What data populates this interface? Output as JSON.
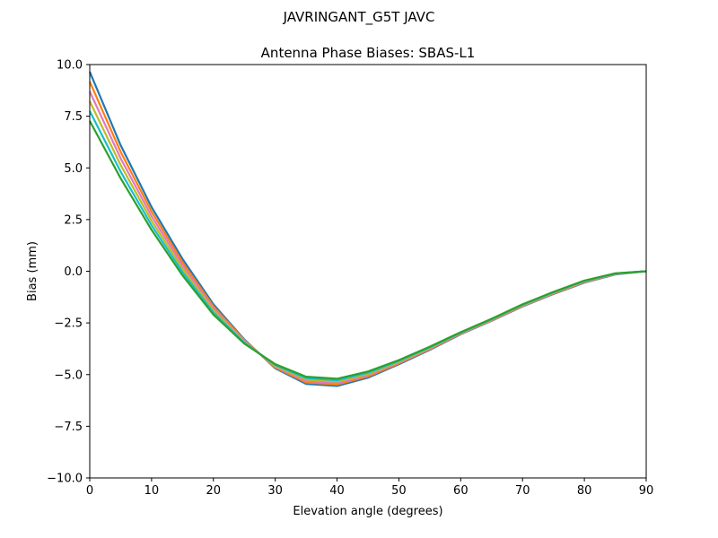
{
  "suptitle": "JAVRINGANT_G5T  JAVC",
  "chart_data": {
    "type": "line",
    "title": "Antenna Phase Biases: SBAS-L1",
    "xlabel": "Elevation angle (degrees)",
    "ylabel": "Bias (mm)",
    "xlim": [
      0,
      90
    ],
    "ylim": [
      -10,
      10
    ],
    "xticks": [
      "0",
      "10",
      "20",
      "30",
      "40",
      "50",
      "60",
      "70",
      "80",
      "90"
    ],
    "yticks": [
      "−10.0",
      "−7.5",
      "−5.0",
      "−2.5",
      "0.0",
      "2.5",
      "5.0",
      "7.5",
      "10.0"
    ],
    "grid": false,
    "x": [
      0,
      5,
      10,
      15,
      20,
      25,
      30,
      35,
      40,
      45,
      50,
      55,
      60,
      65,
      70,
      75,
      80,
      85,
      90
    ],
    "series": [
      {
        "color": "#1f77b4",
        "values": [
          9.65,
          6.1,
          3.1,
          0.6,
          -1.6,
          -3.3,
          -4.7,
          -5.45,
          -5.55,
          -5.15,
          -4.5,
          -3.8,
          -3.05,
          -2.4,
          -1.7,
          -1.1,
          -0.55,
          -0.15,
          0
        ]
      },
      {
        "color": "#ff7f0e",
        "values": [
          9.17,
          5.78,
          2.88,
          0.44,
          -1.7,
          -3.34,
          -4.66,
          -5.38,
          -5.48,
          -5.09,
          -4.46,
          -3.77,
          -3.03,
          -2.38,
          -1.68,
          -1.08,
          -0.53,
          -0.14,
          0
        ]
      },
      {
        "color": "#e377c2",
        "values": [
          8.7,
          5.46,
          2.66,
          0.28,
          -1.8,
          -3.38,
          -4.62,
          -5.31,
          -5.41,
          -5.03,
          -4.42,
          -3.74,
          -3.01,
          -2.36,
          -1.66,
          -1.06,
          -0.51,
          -0.13,
          0
        ]
      },
      {
        "color": "#bcbd22",
        "values": [
          8.22,
          5.14,
          2.44,
          0.12,
          -1.9,
          -3.42,
          -4.58,
          -5.24,
          -5.34,
          -4.97,
          -4.38,
          -3.71,
          -2.99,
          -2.34,
          -1.64,
          -1.04,
          -0.49,
          -0.12,
          0
        ]
      },
      {
        "color": "#17becf",
        "values": [
          7.75,
          4.82,
          2.22,
          -0.04,
          -2.0,
          -3.46,
          -4.54,
          -5.17,
          -5.27,
          -4.91,
          -4.34,
          -3.68,
          -2.97,
          -2.32,
          -1.62,
          -1.02,
          -0.47,
          -0.11,
          0
        ]
      },
      {
        "color": "#2ca02c",
        "values": [
          7.27,
          4.5,
          2.0,
          -0.2,
          -2.1,
          -3.5,
          -4.5,
          -5.1,
          -5.2,
          -4.85,
          -4.3,
          -3.65,
          -2.95,
          -2.3,
          -1.6,
          -1.0,
          -0.45,
          -0.1,
          0
        ]
      }
    ]
  }
}
